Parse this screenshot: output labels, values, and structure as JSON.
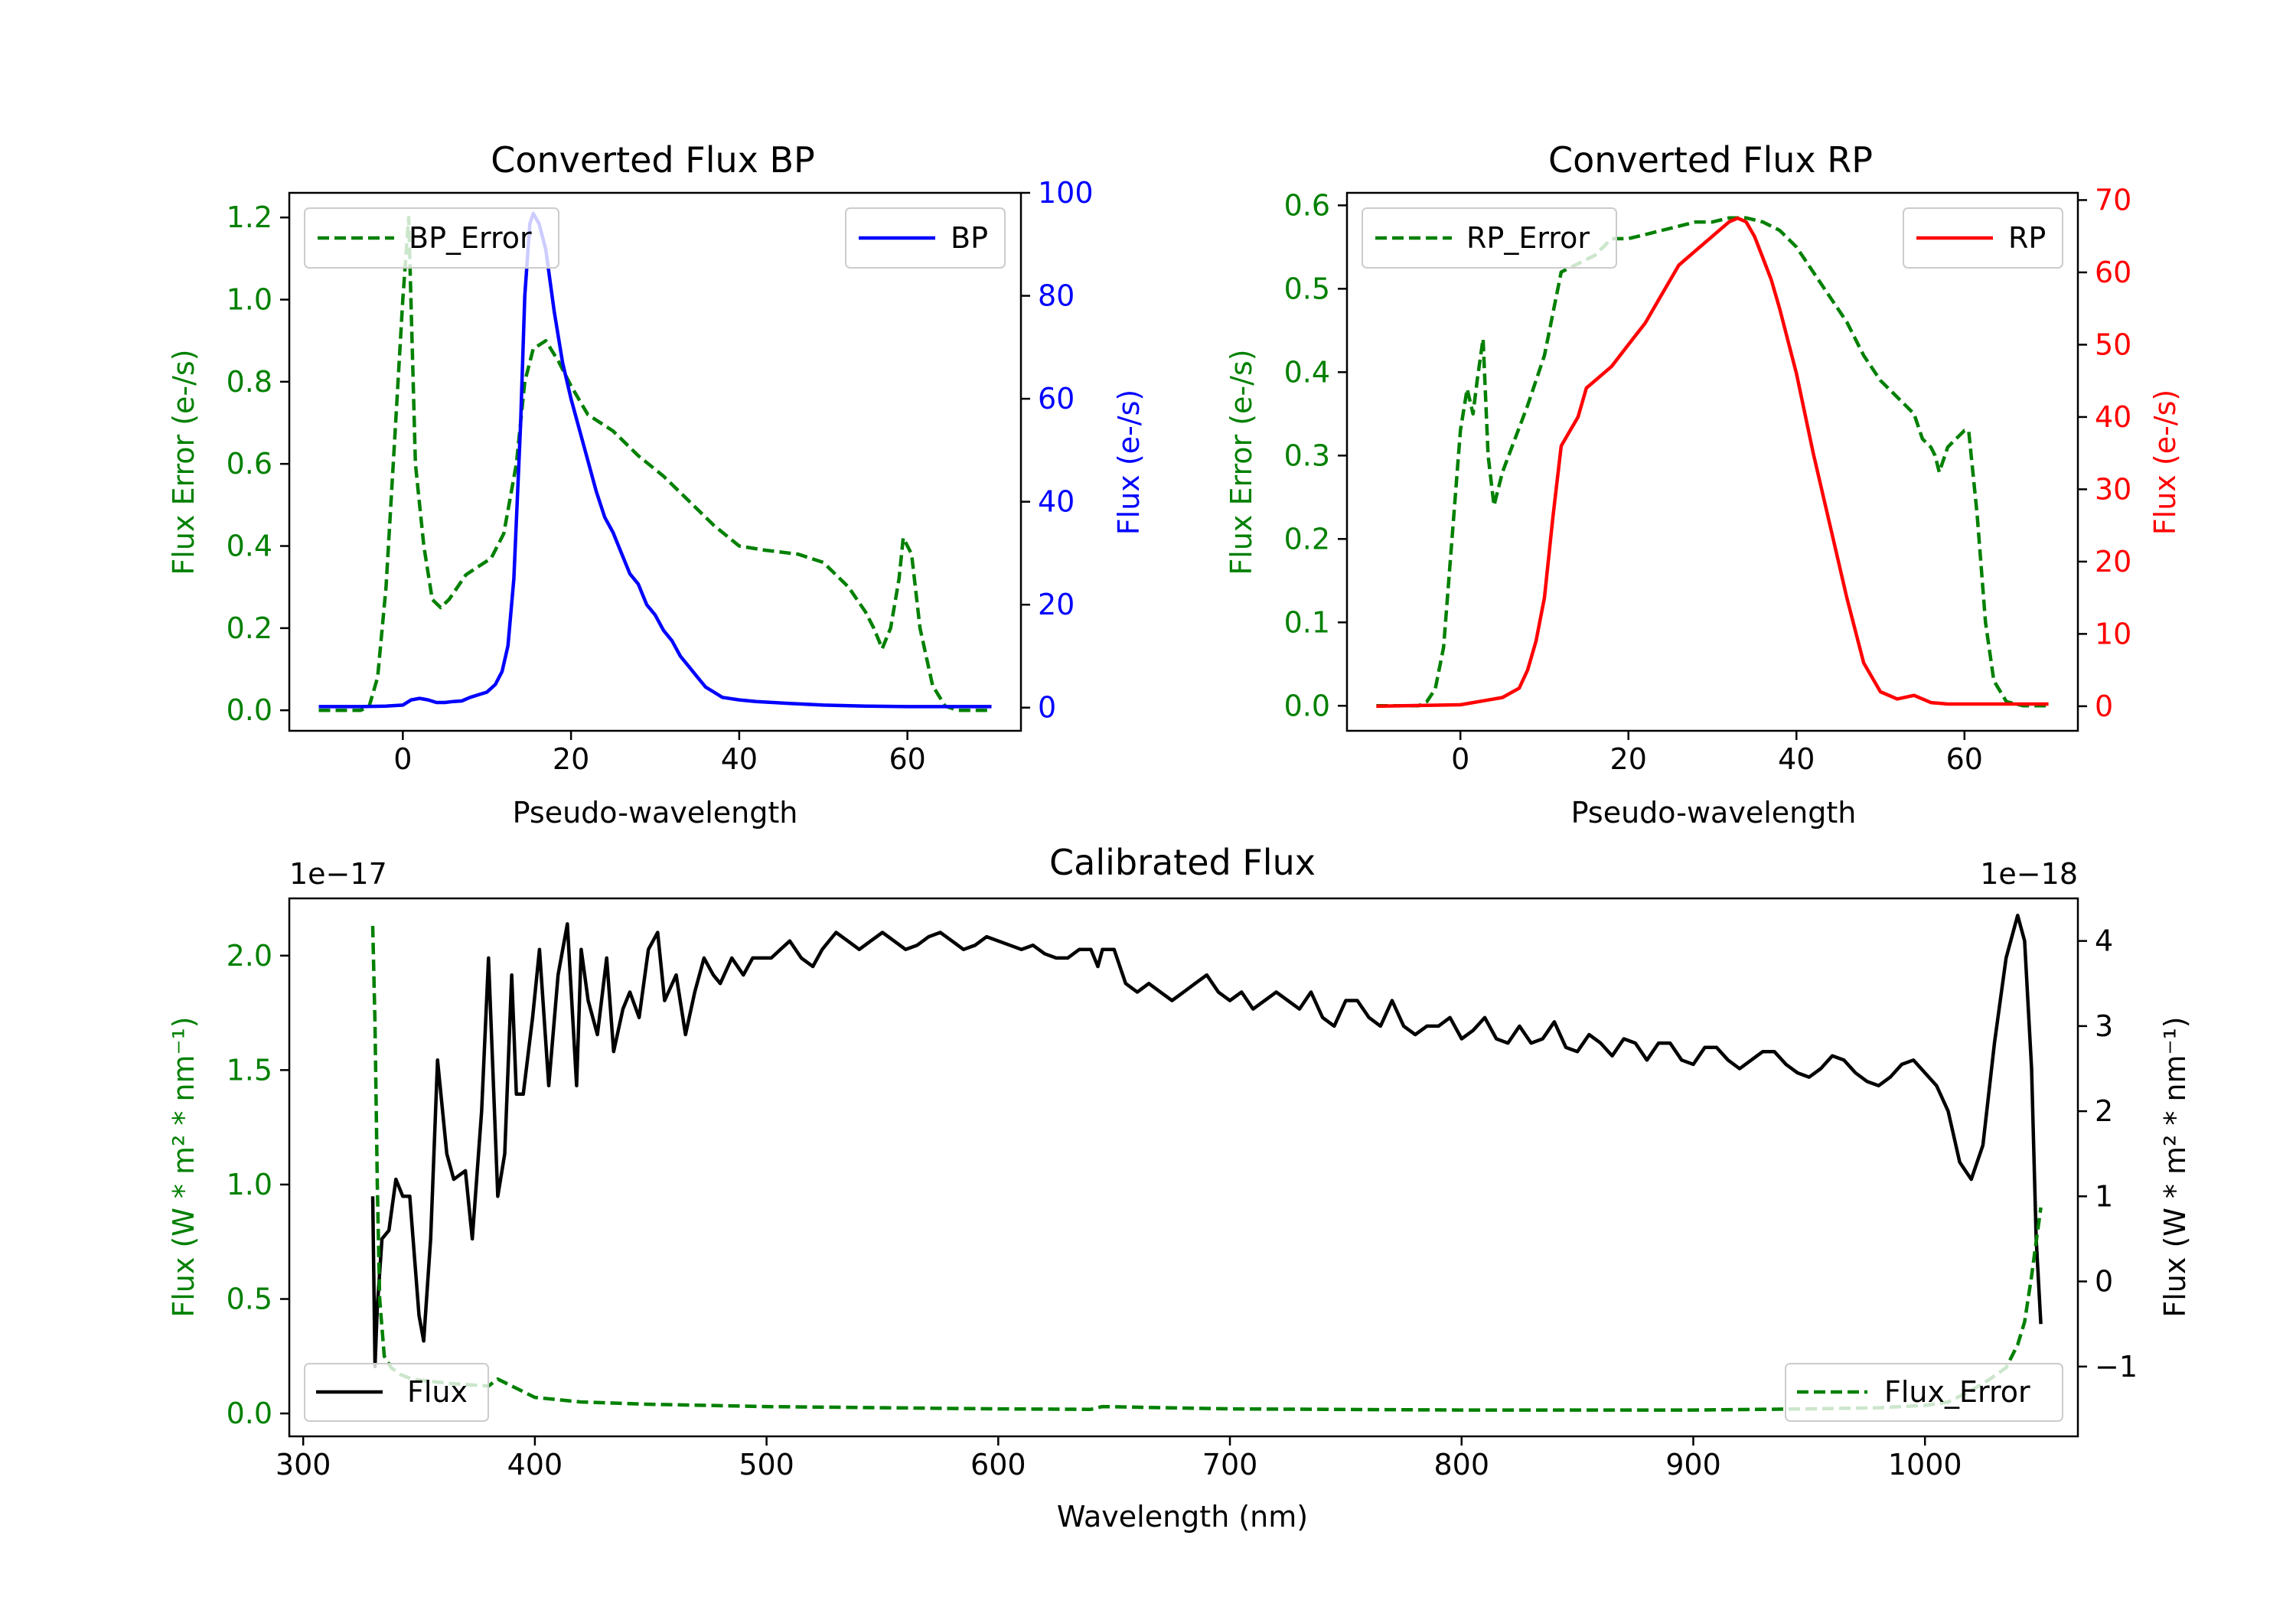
{
  "chart_data": [
    {
      "id": "bp",
      "type": "line",
      "title": "Converted Flux BP",
      "xlabel": "Pseudo-wavelength",
      "ylabel_left": "Flux Error (e-/s)",
      "ylabel_right": "Flux (e-/s)",
      "xlim": [
        -13.5,
        73.5
      ],
      "ylim_left": [
        -0.05,
        1.26
      ],
      "ylim_right": [
        -4.5,
        100
      ],
      "xticks": [
        0,
        20,
        40,
        60
      ],
      "yticks_left": [
        0.0,
        0.2,
        0.4,
        0.6,
        0.8,
        1.0,
        1.2
      ],
      "yticks_right": [
        0,
        20,
        40,
        60,
        80,
        100
      ],
      "left_color": "#008000",
      "right_color": "#0000ff",
      "series": [
        {
          "name": "BP_Error",
          "axis": "left",
          "style": "dashed",
          "color": "#008000",
          "x": [
            -10,
            -5,
            -4,
            -3,
            -2,
            -1,
            0,
            0.7,
            1.5,
            2.5,
            3.5,
            4.5,
            5.5,
            6.5,
            7.5,
            9,
            10.5,
            12,
            13.5,
            14.5,
            15.5,
            17,
            18.5,
            20,
            22,
            25,
            28,
            31,
            34,
            37,
            40,
            43,
            47,
            50,
            53,
            55,
            56,
            57,
            58,
            59,
            59.5,
            60.5,
            61.5,
            63,
            64.5,
            66,
            70
          ],
          "values": [
            0.0,
            0.0,
            0.01,
            0.08,
            0.3,
            0.65,
            1.0,
            1.2,
            0.6,
            0.4,
            0.27,
            0.25,
            0.27,
            0.3,
            0.33,
            0.35,
            0.37,
            0.43,
            0.6,
            0.8,
            0.88,
            0.9,
            0.85,
            0.79,
            0.72,
            0.68,
            0.62,
            0.57,
            0.51,
            0.45,
            0.4,
            0.39,
            0.38,
            0.36,
            0.3,
            0.24,
            0.2,
            0.15,
            0.2,
            0.32,
            0.42,
            0.38,
            0.2,
            0.06,
            0.01,
            0.0,
            0.0
          ]
        },
        {
          "name": "BP",
          "axis": "right",
          "style": "solid",
          "color": "#0000ff",
          "x": [
            -10,
            -5,
            -2,
            0,
            1,
            2,
            3,
            4,
            5,
            6,
            7,
            8,
            9,
            10,
            11,
            11.8,
            12.5,
            13.2,
            14,
            14.5,
            15.1,
            15.5,
            16.2,
            17,
            18,
            19,
            20,
            21,
            22,
            23,
            24,
            25,
            26,
            27,
            28,
            29,
            30,
            31,
            32,
            33,
            34,
            35,
            36,
            37,
            38,
            40,
            42,
            44,
            46,
            50,
            55,
            60,
            65,
            70
          ],
          "values": [
            0.2,
            0.2,
            0.3,
            0.5,
            1.5,
            1.8,
            1.5,
            1.0,
            1.0,
            1.2,
            1.3,
            2.0,
            2.5,
            3.0,
            4.5,
            7,
            12,
            25,
            55,
            80,
            94,
            96,
            94,
            89,
            77,
            67,
            60,
            54,
            48,
            42,
            37,
            34,
            30,
            26,
            24,
            20,
            18,
            15,
            13,
            10,
            8,
            6,
            4,
            3,
            2,
            1.5,
            1.2,
            1,
            0.8,
            0.5,
            0.3,
            0.2,
            0.2,
            0.2
          ]
        }
      ]
    },
    {
      "id": "rp",
      "type": "line",
      "title": "Converted Flux RP",
      "xlabel": "Pseudo-wavelength",
      "ylabel_left": "Flux Error (e-/s)",
      "ylabel_right": "Flux (e-/s)",
      "xlim": [
        -13.5,
        73.5
      ],
      "ylim_left": [
        -0.03,
        0.615
      ],
      "ylim_right": [
        -3.4,
        71
      ],
      "xticks": [
        0,
        20,
        40,
        60
      ],
      "yticks_left": [
        0.0,
        0.1,
        0.2,
        0.3,
        0.4,
        0.5,
        0.6
      ],
      "yticks_right": [
        0,
        10,
        20,
        30,
        40,
        50,
        60,
        70
      ],
      "left_color": "#008000",
      "right_color": "#ff0000",
      "series": [
        {
          "name": "RP_Error",
          "axis": "left",
          "style": "dashed",
          "color": "#008000",
          "x": [
            -10,
            -5,
            -4,
            -3,
            -2,
            -1,
            0,
            0.8,
            1.5,
            2,
            2.7,
            3.3,
            4,
            5,
            6.5,
            8,
            10,
            12,
            14,
            16,
            18,
            20,
            22,
            24,
            26,
            28,
            30,
            32,
            34,
            36,
            38,
            40,
            42,
            44,
            46,
            48,
            50,
            52,
            54,
            55,
            56,
            56.5,
            57,
            58,
            59,
            60,
            60.5,
            61.5,
            62.5,
            63.5,
            65,
            67,
            70
          ],
          "values": [
            0.0,
            0.0,
            0.005,
            0.02,
            0.07,
            0.2,
            0.33,
            0.38,
            0.35,
            0.39,
            0.44,
            0.3,
            0.24,
            0.28,
            0.32,
            0.36,
            0.42,
            0.52,
            0.53,
            0.54,
            0.56,
            0.56,
            0.565,
            0.57,
            0.575,
            0.58,
            0.58,
            0.585,
            0.585,
            0.58,
            0.57,
            0.55,
            0.52,
            0.49,
            0.46,
            0.42,
            0.39,
            0.37,
            0.35,
            0.32,
            0.31,
            0.3,
            0.28,
            0.31,
            0.32,
            0.33,
            0.33,
            0.23,
            0.1,
            0.03,
            0.005,
            0.0,
            0.0
          ]
        },
        {
          "name": "RP",
          "axis": "right",
          "style": "solid",
          "color": "#ff0000",
          "x": [
            -10,
            0,
            3,
            5,
            7,
            8,
            9,
            10,
            11,
            12,
            13,
            14,
            15,
            16,
            18,
            20,
            22,
            24,
            26,
            28,
            30,
            31,
            32,
            33,
            34,
            35,
            36,
            37,
            38,
            40,
            42,
            44,
            46,
            48,
            50,
            52,
            54,
            56,
            58,
            60,
            65,
            70
          ],
          "values": [
            0,
            0.2,
            0.8,
            1.2,
            2.5,
            5,
            9,
            15,
            26,
            36,
            38,
            40,
            44,
            45,
            47,
            50,
            53,
            57,
            61,
            63,
            65,
            66,
            67,
            67.5,
            67,
            65,
            62,
            59,
            55,
            46,
            35,
            25,
            15,
            6,
            2.0,
            1.0,
            1.5,
            0.5,
            0.3,
            0.3,
            0.3,
            0.3
          ]
        }
      ]
    },
    {
      "id": "cal",
      "type": "line",
      "title": "Calibrated Flux",
      "xlabel": "Wavelength (nm)",
      "ylabel_left": "Flux (W * m² * nm⁻¹)",
      "ylabel_right": "Flux (W * m² * nm⁻¹)",
      "offset_left": "1e−17",
      "offset_right": "1e−18",
      "xlim": [
        294,
        1066
      ],
      "ylim_left": [
        -0.1,
        2.25
      ],
      "ylim_right": [
        -1.82,
        4.5
      ],
      "xticks": [
        300,
        400,
        500,
        600,
        700,
        800,
        900,
        1000
      ],
      "yticks_left": [
        0.0,
        0.5,
        1.0,
        1.5,
        2.0
      ],
      "yticks_right": [
        -1,
        0,
        1,
        2,
        3,
        4
      ],
      "ytick_labels_right": [
        "−1",
        "0",
        "1",
        "2",
        "3",
        "4"
      ],
      "left_color": "#008000",
      "right_color": "#000000",
      "series": [
        {
          "name": "Flux",
          "axis": "right",
          "style": "solid",
          "color": "#000000",
          "x": [
            330,
            331,
            332,
            334,
            337,
            340,
            343,
            346,
            350,
            352,
            355,
            358,
            362,
            365,
            370,
            373,
            377,
            380,
            384,
            387,
            390,
            392,
            395,
            399,
            402,
            406,
            410,
            414,
            418,
            420,
            423,
            427,
            431,
            434,
            438,
            441,
            445,
            449,
            453,
            456,
            461,
            465,
            469,
            473,
            477,
            480,
            485,
            490,
            494,
            498,
            502,
            506,
            510,
            515,
            520,
            524,
            530,
            535,
            540,
            545,
            550,
            555,
            560,
            565,
            570,
            575,
            580,
            585,
            590,
            595,
            600,
            605,
            610,
            615,
            620,
            625,
            630,
            635,
            640,
            643,
            645,
            650,
            655,
            660,
            665,
            670,
            675,
            680,
            685,
            690,
            695,
            700,
            705,
            710,
            715,
            720,
            725,
            730,
            735,
            740,
            745,
            750,
            755,
            760,
            765,
            770,
            775,
            780,
            785,
            790,
            795,
            800,
            805,
            810,
            815,
            820,
            825,
            830,
            835,
            840,
            845,
            850,
            855,
            860,
            865,
            870,
            875,
            880,
            885,
            890,
            895,
            900,
            905,
            910,
            915,
            920,
            925,
            930,
            935,
            940,
            945,
            950,
            955,
            960,
            965,
            970,
            975,
            980,
            985,
            990,
            995,
            1000,
            1005,
            1010,
            1015,
            1020,
            1025,
            1030,
            1035,
            1040,
            1043,
            1046,
            1048,
            1050
          ],
          "values": [
            1.0,
            -1.0,
            -0.3,
            0.5,
            0.6,
            1.2,
            1.0,
            1.0,
            -0.4,
            -0.7,
            0.5,
            2.6,
            1.5,
            1.2,
            1.3,
            0.5,
            2.0,
            3.8,
            1.0,
            1.5,
            3.6,
            2.2,
            2.2,
            3.1,
            3.9,
            2.3,
            3.6,
            4.2,
            2.3,
            3.9,
            3.3,
            2.9,
            3.8,
            2.7,
            3.2,
            3.4,
            3.1,
            3.9,
            4.1,
            3.3,
            3.6,
            2.9,
            3.4,
            3.8,
            3.6,
            3.5,
            3.8,
            3.6,
            3.8,
            3.8,
            3.8,
            3.9,
            4.0,
            3.8,
            3.7,
            3.9,
            4.1,
            4.0,
            3.9,
            4.0,
            4.1,
            4.0,
            3.9,
            3.95,
            4.05,
            4.1,
            4.0,
            3.9,
            3.95,
            4.05,
            4.0,
            3.95,
            3.9,
            3.95,
            3.85,
            3.8,
            3.8,
            3.9,
            3.9,
            3.7,
            3.9,
            3.9,
            3.5,
            3.4,
            3.5,
            3.4,
            3.3,
            3.4,
            3.5,
            3.6,
            3.4,
            3.3,
            3.4,
            3.2,
            3.3,
            3.4,
            3.3,
            3.2,
            3.4,
            3.1,
            3.0,
            3.3,
            3.3,
            3.1,
            3.0,
            3.3,
            3.0,
            2.9,
            3.0,
            3.0,
            3.1,
            2.85,
            2.95,
            3.1,
            2.85,
            2.8,
            3.0,
            2.8,
            2.85,
            3.05,
            2.75,
            2.7,
            2.9,
            2.8,
            2.65,
            2.85,
            2.8,
            2.6,
            2.8,
            2.8,
            2.6,
            2.55,
            2.75,
            2.75,
            2.6,
            2.5,
            2.6,
            2.7,
            2.7,
            2.55,
            2.45,
            2.4,
            2.5,
            2.65,
            2.6,
            2.45,
            2.35,
            2.3,
            2.4,
            2.55,
            2.6,
            2.45,
            2.3,
            2.0,
            1.4,
            1.2,
            1.6,
            2.8,
            3.8,
            4.3,
            4.0,
            2.5,
            0.5,
            -0.5
          ]
        },
        {
          "name": "Flux_Error",
          "axis": "left",
          "style": "dashed",
          "color": "#008000",
          "x": [
            330,
            331,
            332,
            333,
            335,
            338,
            342,
            347,
            355,
            365,
            380,
            384,
            390,
            400,
            420,
            450,
            500,
            550,
            600,
            640,
            645,
            700,
            800,
            900,
            950,
            980,
            1000,
            1010,
            1020,
            1028,
            1035,
            1040,
            1043,
            1046,
            1048,
            1050
          ],
          "values": [
            2.13,
            1.7,
            1.0,
            0.5,
            0.25,
            0.2,
            0.17,
            0.15,
            0.14,
            0.13,
            0.12,
            0.15,
            0.12,
            0.07,
            0.05,
            0.04,
            0.03,
            0.025,
            0.02,
            0.018,
            0.03,
            0.02,
            0.015,
            0.015,
            0.02,
            0.025,
            0.035,
            0.05,
            0.1,
            0.15,
            0.2,
            0.3,
            0.4,
            0.6,
            0.75,
            0.9
          ]
        }
      ]
    }
  ]
}
